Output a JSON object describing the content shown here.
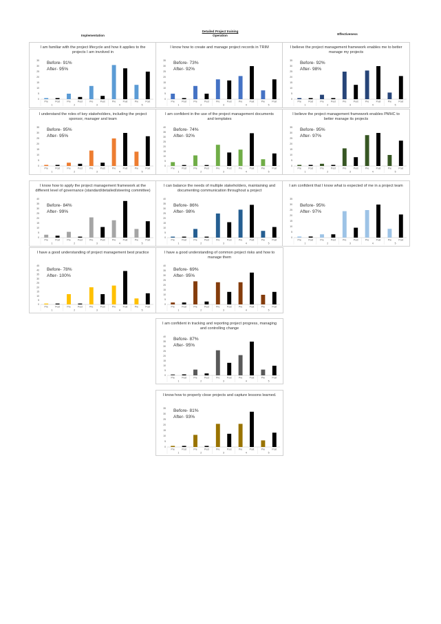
{
  "headers": {
    "implementation": "Implementation",
    "operation_title": "Detailed Project training",
    "operation": "Operation",
    "effectiveness": "Effectiveness"
  },
  "chart_data": [
    {
      "type": "bar",
      "column": "Implementation",
      "title": "I am familiar with the project lifecycle and how it applies to the projects I am involved in",
      "before": "Before- 91%",
      "after": "After- 95%",
      "color": "#5b9bd5",
      "categories": [
        "Pre",
        "Post",
        "Pre",
        "Post",
        "Pre",
        "Post",
        "Pre",
        "Post",
        "Pre",
        "Post"
      ],
      "groups": [
        "1",
        "2",
        "3",
        "4",
        "5"
      ],
      "values": [
        1,
        1,
        5,
        2,
        12,
        3,
        31,
        28,
        13,
        25
      ],
      "yticks": [
        0,
        5,
        10,
        15,
        20,
        25,
        30,
        35
      ],
      "ylim": [
        0,
        35
      ]
    },
    {
      "type": "bar",
      "column": "Operation",
      "title": "I know how to create and manage project records in TRIM",
      "before": "Before- 73%",
      "after": "After- 92%",
      "color": "#4472c4",
      "categories": [
        "Pre",
        "Post",
        "Pre",
        "Post",
        "Pre",
        "Post",
        "Pre",
        "Post",
        "Pre",
        "Post"
      ],
      "groups": [
        "1",
        "2",
        "3",
        "4",
        "5"
      ],
      "values": [
        5,
        1,
        12,
        5,
        18,
        17,
        21,
        30,
        8,
        18
      ],
      "yticks": [
        0,
        5,
        10,
        15,
        20,
        25,
        30,
        35
      ],
      "ylim": [
        0,
        35
      ]
    },
    {
      "type": "bar",
      "column": "Effectiveness",
      "title": "I believe the project management framework enables me to better manage my projects",
      "before": "Before- 92%",
      "after": "After- 98%",
      "color": "#264478",
      "categories": [
        "Pre",
        "Post",
        "Pre",
        "Post",
        "Pre",
        "Post",
        "Pre",
        "Post",
        "Pre",
        "Post"
      ],
      "groups": [
        "1",
        "2",
        "3",
        "4",
        "5"
      ],
      "values": [
        1,
        1,
        4,
        1,
        25,
        13,
        26,
        30,
        6,
        21
      ],
      "yticks": [
        0,
        5,
        10,
        15,
        20,
        25,
        30,
        35
      ],
      "ylim": [
        0,
        35
      ]
    },
    {
      "type": "bar",
      "column": "Implementation",
      "title": "I understand the roles of key stakeholders, including the project sponsor, manager and team",
      "before": "Before- 95%",
      "after": "After- 95%",
      "color": "#ed7d31",
      "categories": [
        "Pre",
        "Post",
        "Pre",
        "Post",
        "Pre",
        "Post",
        "Pre",
        "Post",
        "Pre",
        "Post"
      ],
      "groups": [
        "1",
        "2",
        "3",
        "4",
        "5"
      ],
      "values": [
        1,
        1,
        3,
        2,
        14,
        3,
        25,
        30,
        13,
        27
      ],
      "yticks": [
        0,
        5,
        10,
        15,
        20,
        25,
        30,
        35
      ],
      "ylim": [
        0,
        35
      ]
    },
    {
      "type": "bar",
      "column": "Operation",
      "title": "I am confident in the use of the project management documents and templates",
      "before": "Before- 74%",
      "after": "After- 92%",
      "color": "#70ad47",
      "categories": [
        "Pre",
        "Post",
        "Pre",
        "Post",
        "Pre",
        "Post",
        "Pre",
        "Post",
        "Pre",
        "Post"
      ],
      "groups": [
        "1",
        "2",
        "3",
        "4",
        "5"
      ],
      "values": [
        4,
        1,
        11,
        1,
        22,
        14,
        17,
        34,
        7,
        13
      ],
      "yticks": [
        0,
        5,
        10,
        15,
        20,
        25,
        30,
        35,
        40
      ],
      "ylim": [
        0,
        40
      ]
    },
    {
      "type": "bar",
      "column": "Effectiveness",
      "title": "I believe the project management framework enables PMHC to better manage its projects",
      "before": "Before- 95%",
      "after": "After- 97%",
      "color": "#375623",
      "categories": [
        "Pre",
        "Post",
        "Pre",
        "Post",
        "Pre",
        "Post",
        "Pre",
        "Post",
        "Pre",
        "Post"
      ],
      "groups": [
        "1",
        "2",
        "3",
        "4",
        "5"
      ],
      "values": [
        1,
        1,
        2,
        1,
        16,
        8,
        28,
        30,
        10,
        23
      ],
      "yticks": [
        0,
        5,
        10,
        15,
        20,
        25,
        30,
        35
      ],
      "ylim": [
        0,
        35
      ]
    },
    {
      "type": "bar",
      "column": "Implementation",
      "title": "I know how to apply the project management framework at the different level of governance (standard/detailed/steering committee)",
      "before": "Before- 84%",
      "after": "After- 99%",
      "color": "#a5a5a5",
      "categories": [
        "Pre",
        "Post",
        "Pre",
        "Post",
        "Pre",
        "Post",
        "Pre",
        "Post",
        "Pre",
        "Post"
      ],
      "groups": [
        "1",
        "2",
        "3",
        "4",
        "5"
      ],
      "values": [
        3,
        2,
        6,
        1,
        21,
        11,
        18,
        38,
        9,
        17
      ],
      "yticks": [
        0,
        5,
        10,
        15,
        20,
        25,
        30,
        35,
        40
      ],
      "ylim": [
        0,
        40
      ]
    },
    {
      "type": "bar",
      "column": "Operation",
      "title": "I can balance the needs of multiple stakeholders, maintaining and documenting communication throughout a project",
      "before": "Before- 86%",
      "after": "After- 98%",
      "color": "#255e91",
      "categories": [
        "Pre",
        "Post",
        "Pre",
        "Post",
        "Pre",
        "Post",
        "Pre",
        "Post",
        "Pre",
        "Post"
      ],
      "groups": [
        "1",
        "2",
        "3",
        "4",
        "5"
      ],
      "values": [
        1,
        1,
        9,
        1,
        25,
        16,
        29,
        34,
        7,
        11
      ],
      "yticks": [
        0,
        5,
        10,
        15,
        20,
        25,
        30,
        35,
        40
      ],
      "ylim": [
        0,
        40
      ]
    },
    {
      "type": "bar",
      "column": "Effectiveness",
      "title": "I am confident that I know what is expected of me in a project team",
      "before": "Before- 95%",
      "after": "After- 97%",
      "color": "#9dc3e6",
      "categories": [
        "Pre",
        "Post",
        "Pre",
        "Post",
        "Pre",
        "Post",
        "Pre",
        "Post",
        "Pre",
        "Post"
      ],
      "groups": [
        "1",
        "2",
        "3",
        "4",
        "5"
      ],
      "values": [
        1,
        1,
        3,
        3,
        24,
        9,
        25,
        30,
        8,
        21
      ],
      "yticks": [
        0,
        5,
        10,
        15,
        20,
        25,
        30,
        35
      ],
      "ylim": [
        0,
        35
      ]
    },
    {
      "type": "bar",
      "column": "Implementation",
      "title": "I have a good understanding of project management best practice",
      "before": "Before- 78%",
      "after": "After- 100%",
      "color": "#ffc000",
      "categories": [
        "Pre",
        "Post",
        "Pre",
        "Post",
        "Pre",
        "Post",
        "Pre",
        "Post",
        "Pre",
        "Post"
      ],
      "groups": [
        "1",
        "2",
        "3",
        "4",
        "5"
      ],
      "values": [
        1,
        1,
        12,
        1,
        20,
        12,
        22,
        39,
        7,
        13
      ],
      "yticks": [
        0,
        5,
        10,
        15,
        20,
        25,
        30,
        35,
        40,
        45
      ],
      "ylim": [
        0,
        45
      ]
    },
    {
      "type": "bar",
      "column": "Operation",
      "title": "I have a good understanding of common project risks and how to manage them",
      "before": "Before- 69%",
      "after": "After- 95%",
      "color": "#843c0c",
      "categories": [
        "Pre",
        "Post",
        "Pre",
        "Post",
        "Pre",
        "Post",
        "Pre",
        "Post",
        "Pre",
        "Post"
      ],
      "groups": [
        "1",
        "2",
        "3",
        "4",
        "5"
      ],
      "values": [
        2,
        2,
        24,
        3,
        23,
        13,
        23,
        33,
        10,
        13
      ],
      "yticks": [
        0,
        5,
        10,
        15,
        20,
        25,
        30,
        35,
        40
      ],
      "ylim": [
        0,
        40
      ]
    },
    {
      "type": "bar",
      "column": "Operation",
      "title": "I am confident in tracking and reporting project progress, managing and controlling change",
      "before": "Before- 87%",
      "after": "After- 95%",
      "color": "#595959",
      "categories": [
        "Pre",
        "Post",
        "Pre",
        "Post",
        "Pre",
        "Post",
        "Pre",
        "Post",
        "Pre",
        "Post"
      ],
      "groups": [
        "1",
        "2",
        "3",
        "4",
        "5"
      ],
      "values": [
        1,
        1,
        6,
        2,
        26,
        13,
        21,
        35,
        6,
        10
      ],
      "yticks": [
        0,
        5,
        10,
        15,
        20,
        25,
        30,
        35,
        40
      ],
      "ylim": [
        0,
        40
      ]
    },
    {
      "type": "bar",
      "column": "Operation",
      "title": "I know how to properly close projects and capture lessons learned.",
      "before": "Before- 81%",
      "after": "After- 93%",
      "color": "#997300",
      "categories": [
        "Pre",
        "Post",
        "Pre",
        "Post",
        "Pre",
        "Post",
        "Pre",
        "Post",
        "Pre",
        "Post"
      ],
      "groups": [
        "1",
        "2",
        "3",
        "4",
        "5"
      ],
      "values": [
        1,
        1,
        11,
        1,
        21,
        12,
        21,
        32,
        6,
        13
      ],
      "yticks": [
        0,
        5,
        10,
        15,
        20,
        25,
        30,
        35
      ],
      "ylim": [
        0,
        35
      ]
    }
  ]
}
